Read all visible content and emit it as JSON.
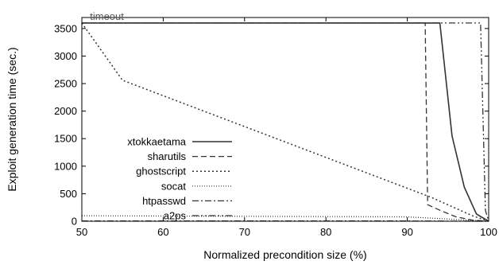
{
  "chart_data": {
    "type": "line",
    "title": "",
    "xlabel": "Normalized precondition size (%)",
    "ylabel": "Exploit generation time (sec.)",
    "xlim": [
      50,
      100
    ],
    "ylim": [
      0,
      3700
    ],
    "xticks": [
      "50",
      "60",
      "70",
      "80",
      "90",
      "100"
    ],
    "xtick_values": [
      50,
      60,
      70,
      80,
      90,
      100
    ],
    "yticks": [
      "0",
      "500",
      "1000",
      "1500",
      "2000",
      "2500",
      "3000",
      "3500"
    ],
    "ytick_values": [
      0,
      500,
      1000,
      1500,
      2000,
      2500,
      3000,
      3500
    ],
    "grid": false,
    "legend_position": "left",
    "annotations": [
      {
        "text": "timeout",
        "x": 51,
        "y": 3600
      }
    ],
    "series": [
      {
        "name": "xtokkaetama",
        "style": "solid",
        "color": "#333333",
        "x": [
          50,
          94,
          95.5,
          97,
          98.5,
          100
        ],
        "y": [
          3600,
          3600,
          1550,
          620,
          130,
          0
        ]
      },
      {
        "name": "sharutils",
        "style": "dashed",
        "color": "#333333",
        "x": [
          50,
          92.2,
          92.5,
          94,
          96,
          98,
          100
        ],
        "y": [
          3600,
          3600,
          300,
          200,
          80,
          20,
          0
        ]
      },
      {
        "name": "ghostscript",
        "style": "dotted",
        "color": "#333333",
        "x": [
          50,
          55,
          93,
          98,
          100
        ],
        "y": [
          3600,
          2560,
          430,
          100,
          0
        ]
      },
      {
        "name": "socat",
        "style": "fine-dotted",
        "color": "#333333",
        "x": [
          50,
          90,
          100
        ],
        "y": [
          100,
          80,
          0
        ]
      },
      {
        "name": "htpasswd",
        "style": "dashdot",
        "color": "#333333",
        "x": [
          50,
          90,
          100
        ],
        "y": [
          5,
          5,
          0
        ]
      },
      {
        "name": "a2ps",
        "style": "dashdotdot",
        "color": "#333333",
        "x": [
          50,
          99,
          99.6,
          100
        ],
        "y": [
          3600,
          3600,
          200,
          0
        ]
      }
    ]
  }
}
